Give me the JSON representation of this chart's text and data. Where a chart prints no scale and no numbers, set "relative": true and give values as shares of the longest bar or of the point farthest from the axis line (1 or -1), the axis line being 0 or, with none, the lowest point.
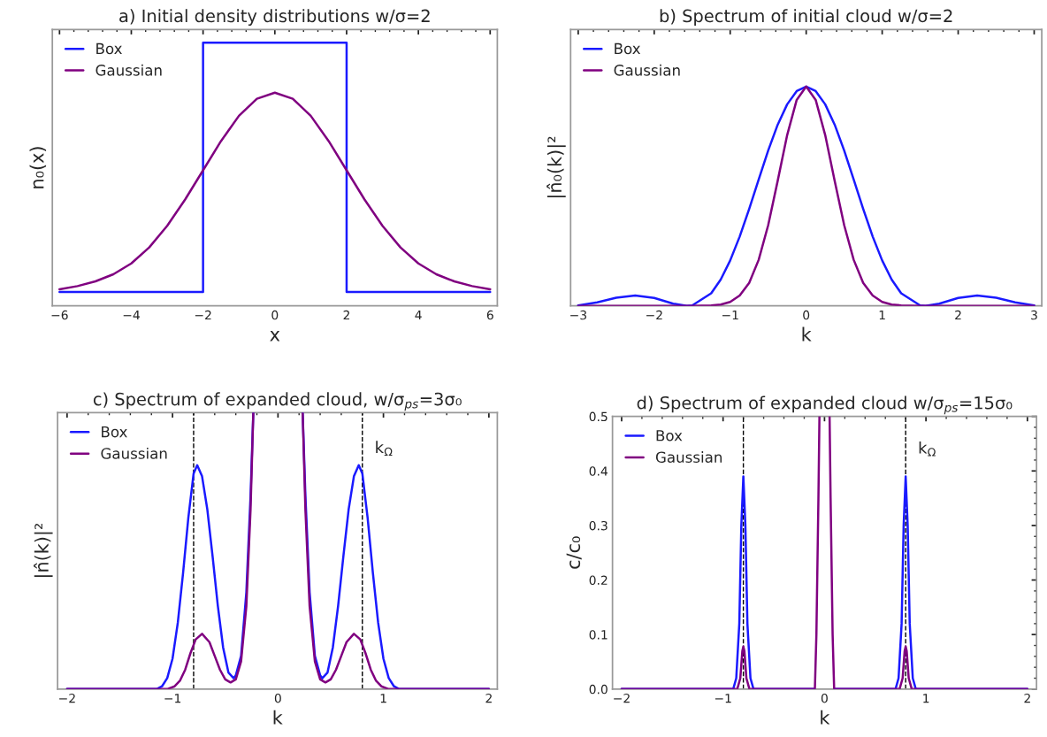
{
  "chart_data": [
    {
      "type": "line",
      "title": "a) Initial density distributions w/σ=2",
      "xlabel": "x",
      "ylabel": "n₀(x)",
      "relative": true,
      "xlim": [
        -6.2,
        6.2
      ],
      "xticks": [
        -6,
        -4,
        -2,
        0,
        2,
        4,
        6
      ],
      "legend": "top left",
      "grid": false,
      "series": [
        {
          "name": "Box",
          "color": "#1a1aff",
          "x": [
            -6,
            -2,
            -2,
            2,
            2,
            6
          ],
          "values": [
            0.053,
            0.053,
            1,
            1,
            0.053,
            0.053
          ]
        },
        {
          "name": "Gaussian",
          "color": "#800080",
          "x": [
            -6,
            -5.5,
            -5,
            -4.5,
            -4,
            -3.5,
            -3,
            -2.5,
            -2,
            -1.5,
            -1,
            -0.5,
            0,
            0.5,
            1,
            1.5,
            2,
            2.5,
            3,
            3.5,
            4,
            4.5,
            5,
            5.5,
            6
          ],
          "values": [
            0.063,
            0.075,
            0.093,
            0.12,
            0.161,
            0.222,
            0.304,
            0.404,
            0.515,
            0.626,
            0.722,
            0.787,
            0.81,
            0.787,
            0.722,
            0.626,
            0.515,
            0.404,
            0.304,
            0.222,
            0.161,
            0.12,
            0.093,
            0.075,
            0.063
          ]
        }
      ]
    },
    {
      "type": "line",
      "title": "b) Spectrum of initial cloud w/σ=2",
      "xlabel": "k",
      "ylabel": "|n̂₀(k)|²",
      "relative": true,
      "xlim": [
        -3.1,
        3.1
      ],
      "xticks": [
        -3,
        -2,
        -1,
        0,
        1,
        2,
        3
      ],
      "legend": "top left",
      "grid": false,
      "series": [
        {
          "name": "Box",
          "color": "#1a1aff",
          "x": [
            -3,
            -2.75,
            -2.5,
            -2.25,
            -2,
            -1.75,
            -1.57,
            -1.5,
            -1.25,
            -1.125,
            -1,
            -0.875,
            -0.75,
            -0.625,
            -0.5,
            -0.375,
            -0.25,
            -0.125,
            0,
            0.125,
            0.25,
            0.375,
            0.5,
            0.625,
            0.75,
            0.875,
            1,
            1.125,
            1.25,
            1.5,
            1.57,
            1.75,
            2,
            2.25,
            2.5,
            2.75,
            3
          ],
          "values": [
            0.002,
            0.016,
            0.037,
            0.047,
            0.036,
            0.01,
            0,
            0.002,
            0.057,
            0.12,
            0.207,
            0.316,
            0.442,
            0.576,
            0.708,
            0.826,
            0.919,
            0.979,
            1,
            0.979,
            0.919,
            0.826,
            0.708,
            0.576,
            0.442,
            0.316,
            0.207,
            0.12,
            0.057,
            0.002,
            0,
            0.01,
            0.036,
            0.047,
            0.037,
            0.016,
            0.002
          ]
        },
        {
          "name": "Gaussian",
          "color": "#800080",
          "x": [
            -3,
            -1.5,
            -1.25,
            -1.125,
            -1,
            -0.875,
            -0.75,
            -0.625,
            -0.5,
            -0.375,
            -0.25,
            -0.125,
            0,
            0.125,
            0.25,
            0.375,
            0.5,
            0.625,
            0.75,
            0.875,
            1,
            1.125,
            1.25,
            1.5,
            3
          ],
          "values": [
            0,
            0,
            0.002,
            0.006,
            0.018,
            0.047,
            0.105,
            0.21,
            0.368,
            0.57,
            0.779,
            0.939,
            1,
            0.939,
            0.779,
            0.57,
            0.368,
            0.21,
            0.105,
            0.047,
            0.018,
            0.006,
            0.002,
            0,
            0
          ]
        }
      ]
    },
    {
      "type": "line",
      "title": "c) Spectrum of expanded cloud, w/σ$_{ps}$=3σ₀",
      "xlabel": "k",
      "ylabel": "|n̂(k)|²",
      "relative": true,
      "xlim": [
        -2.09,
        2.08
      ],
      "xticks": [
        -2,
        -1,
        0,
        1,
        2
      ],
      "legend": "top left",
      "grid": false,
      "ref_lines": [
        {
          "axis": "x",
          "value": -0.8,
          "color": "#000000",
          "line_style": "dashed"
        },
        {
          "axis": "x",
          "value": 0.8,
          "color": "#000000",
          "line_style": "dashed"
        }
      ],
      "annotations": [
        {
          "text": "k$_{Ω}$",
          "x": 0.8,
          "y": 0.87
        }
      ],
      "series": [
        {
          "name": "Box",
          "color": "#1a1aff",
          "x": [
            -2,
            -1.15,
            -1.1,
            -1.05,
            -1,
            -0.95,
            -0.9,
            -0.85,
            -0.8,
            -0.766,
            -0.72,
            -0.67,
            -0.62,
            -0.57,
            -0.52,
            -0.47,
            -0.42,
            -0.4,
            -0.35,
            -0.3,
            -0.26,
            -0.234,
            0,
            0.234,
            0.26,
            0.3,
            0.35,
            0.4,
            0.42,
            0.47,
            0.52,
            0.57,
            0.62,
            0.67,
            0.72,
            0.766,
            0.8,
            0.85,
            0.9,
            0.95,
            1,
            1.05,
            1.1,
            1.15,
            2
          ],
          "values": [
            0,
            0,
            0.01,
            0.04,
            0.11,
            0.24,
            0.42,
            0.62,
            0.78,
            0.81,
            0.77,
            0.65,
            0.48,
            0.3,
            0.15,
            0.06,
            0.039,
            0.05,
            0.12,
            0.35,
            0.7,
            1,
            null,
            1,
            0.7,
            0.35,
            0.12,
            0.05,
            0.039,
            0.06,
            0.15,
            0.3,
            0.48,
            0.65,
            0.77,
            0.81,
            0.78,
            0.62,
            0.42,
            0.24,
            0.11,
            0.04,
            0.01,
            0,
            0
          ]
        },
        {
          "name": "Gaussian",
          "color": "#800080",
          "x": [
            -2,
            -1.05,
            -0.98,
            -0.93,
            -0.88,
            -0.83,
            -0.78,
            -0.72,
            -0.65,
            -0.6,
            -0.55,
            -0.5,
            -0.45,
            -0.4,
            -0.35,
            -0.3,
            -0.26,
            -0.234,
            0,
            0.234,
            0.26,
            0.3,
            0.35,
            0.4,
            0.45,
            0.5,
            0.55,
            0.6,
            0.65,
            0.72,
            0.78,
            0.83,
            0.88,
            0.93,
            0.98,
            1.05,
            2
          ],
          "values": [
            0,
            0,
            0.01,
            0.03,
            0.07,
            0.13,
            0.18,
            0.2,
            0.17,
            0.12,
            0.07,
            0.035,
            0.024,
            0.035,
            0.1,
            0.3,
            0.65,
            1,
            null,
            1,
            0.65,
            0.3,
            0.1,
            0.035,
            0.024,
            0.035,
            0.07,
            0.12,
            0.17,
            0.2,
            0.18,
            0.13,
            0.07,
            0.03,
            0.01,
            0,
            0
          ]
        }
      ]
    },
    {
      "type": "line",
      "title": "d) Spectrum of expanded cloud w/σ$_{ps}$=15σ₀",
      "xlabel": "k",
      "ylabel": "c/c₀",
      "xlim": [
        -2.09,
        2.09
      ],
      "xticks": [
        -2,
        -1,
        0,
        1,
        2
      ],
      "ylim": [
        0,
        0.5
      ],
      "yticks": [
        {
          "value": 0,
          "label": "0.0"
        },
        0.1,
        0.2,
        0.3,
        0.4,
        0.5
      ],
      "legend": "top left",
      "grid": false,
      "ref_lines": [
        {
          "axis": "x",
          "value": -0.8,
          "color": "#000000",
          "line_style": "dashed"
        },
        {
          "axis": "x",
          "value": 0.8,
          "color": "#000000",
          "line_style": "dashed"
        }
      ],
      "annotations": [
        {
          "text": "k$_{Ω}$",
          "x": 0.8,
          "y": 0.44
        }
      ],
      "series": [
        {
          "name": "Box",
          "color": "#1a1aff",
          "x": [
            -2,
            -0.9,
            -0.87,
            -0.84,
            -0.82,
            -0.8,
            -0.78,
            -0.76,
            -0.73,
            -0.7,
            -0.1,
            0,
            0.1,
            0.7,
            0.73,
            0.76,
            0.78,
            0.8,
            0.82,
            0.84,
            0.87,
            0.9,
            2
          ],
          "values": [
            0,
            0,
            0.02,
            0.12,
            0.3,
            0.39,
            0.3,
            0.12,
            0.02,
            0,
            0,
            null,
            0,
            0,
            0.02,
            0.12,
            0.3,
            0.39,
            0.3,
            0.12,
            0.02,
            0,
            0
          ]
        },
        {
          "name": "Gaussian",
          "color": "#800080",
          "x": [
            -2,
            -0.86,
            -0.83,
            -0.81,
            -0.8,
            -0.79,
            -0.77,
            -0.74,
            -0.095,
            -0.08,
            -0.06,
            -0.05,
            0,
            0.05,
            0.06,
            0.08,
            0.095,
            0.74,
            0.77,
            0.79,
            0.8,
            0.81,
            0.83,
            0.86,
            2
          ],
          "values": [
            0,
            0,
            0.02,
            0.07,
            0.078,
            0.07,
            0.02,
            0,
            0,
            0.1,
            0.35,
            0.5,
            null,
            0.5,
            0.35,
            0.1,
            0,
            0,
            0.02,
            0.07,
            0.078,
            0.07,
            0.02,
            0,
            0
          ]
        }
      ]
    }
  ]
}
